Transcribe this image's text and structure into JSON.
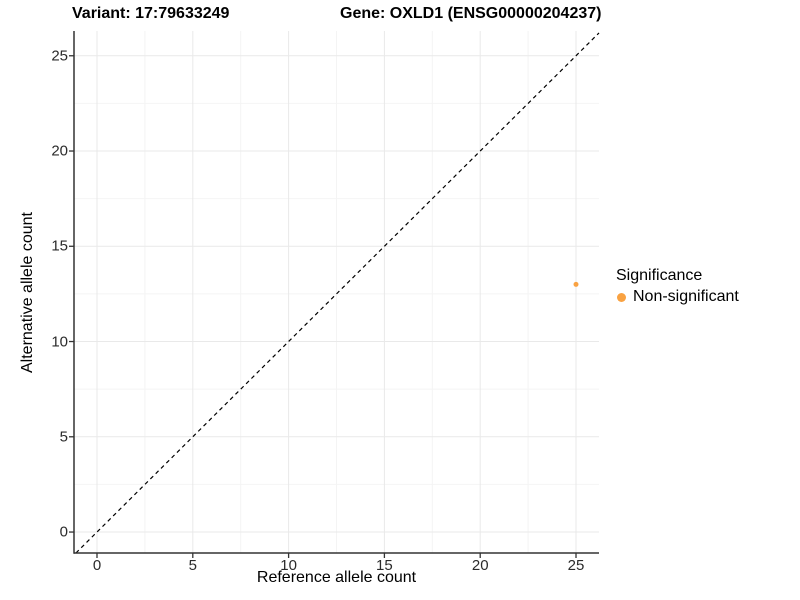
{
  "chart_data": {
    "type": "scatter",
    "titles": {
      "variant": "Variant: 17:79633249",
      "gene": "Gene: OXLD1 (ENSG00000204237)"
    },
    "xlabel": "Reference allele count",
    "ylabel": "Alternative allele count",
    "xticks": [
      0,
      5,
      10,
      15,
      20,
      25
    ],
    "yticks": [
      0,
      5,
      10,
      15,
      20,
      25
    ],
    "minor_xticks": [
      2.5,
      7.5,
      12.5,
      17.5,
      22.5
    ],
    "minor_yticks": [
      2.5,
      7.5,
      12.5,
      17.5,
      22.5
    ],
    "xlim": [
      -1.2,
      26.2
    ],
    "ylim": [
      -1.1,
      26.3
    ],
    "grid": "major and minor light-gray gridlines on white panel",
    "identity_line": {
      "equation": "y = x",
      "style": "dashed",
      "color": "#000000"
    },
    "series": [
      {
        "name": "Non-significant",
        "color": "#F9A242",
        "marker": "circle",
        "points": [
          {
            "x": 25,
            "y": 13
          }
        ]
      }
    ],
    "legend": {
      "title": "Significance",
      "position": "right",
      "items": [
        {
          "label": "Non-significant",
          "color": "#F9A242"
        }
      ]
    },
    "colors": {
      "axis": "#333333",
      "grid_major": "#E9E9E9",
      "grid_minor": "#F4F4F4",
      "tick_mark": "#333333"
    },
    "point_radius": 2.5
  }
}
